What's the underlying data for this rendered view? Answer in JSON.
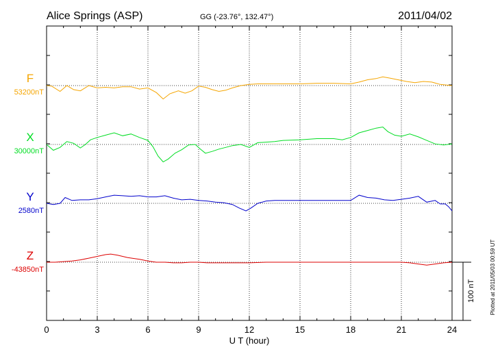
{
  "header": {
    "station": "Alice Springs (ASP)",
    "coords": "GG (-23.76°, 132.47°)",
    "date": "2011/04/02"
  },
  "side_note": "Plotted at 2011/05/03 00:59 UT",
  "scale_bar_label": "100 nT",
  "colors": {
    "F": "#f5a500",
    "X": "#00dd22",
    "Y": "#0000cc",
    "Z": "#dd0000",
    "axis": "#000000"
  },
  "chart_data": {
    "type": "line",
    "title": "Alice Springs (ASP)",
    "xlabel": "U T (hour)",
    "xlim": [
      0,
      24
    ],
    "xticks": [
      0,
      3,
      6,
      9,
      12,
      15,
      18,
      21,
      24
    ],
    "grid": "dotted",
    "scale_bar_nT": 100,
    "series": [
      {
        "name": "F",
        "baseline_label": "53200nT",
        "baseline_nT": 53200,
        "x": [
          0,
          0.3,
          0.8,
          1.2,
          1.6,
          2.0,
          2.5,
          3.0,
          3.5,
          4.0,
          4.5,
          5.0,
          5.5,
          6.0,
          6.5,
          6.9,
          7.3,
          7.8,
          8.2,
          8.6,
          9.0,
          9.4,
          9.8,
          10.2,
          10.6,
          11.0,
          11.5,
          12.0,
          12.5,
          13.0,
          14.0,
          15.0,
          16.0,
          17.0,
          18.0,
          18.5,
          19.0,
          19.5,
          19.9,
          20.3,
          20.8,
          21.3,
          21.8,
          22.3,
          22.8,
          23.3,
          23.7,
          24.0
        ],
        "y": [
          53200,
          53199,
          53190,
          53200,
          53193,
          53191,
          53200,
          53196,
          53197,
          53196,
          53198,
          53198,
          53194,
          53196,
          53188,
          53177,
          53186,
          53191,
          53187,
          53191,
          53199,
          53197,
          53193,
          53190,
          53192,
          53196,
          53200,
          53202,
          53203,
          53203,
          53203,
          53203,
          53204,
          53204,
          53203,
          53206,
          53210,
          53212,
          53215,
          53213,
          53210,
          53207,
          53205,
          53207,
          53206,
          53202,
          53201,
          53200
        ]
      },
      {
        "name": "X",
        "baseline_label": "30000nT",
        "baseline_nT": 30000,
        "x": [
          0,
          0.4,
          0.8,
          1.2,
          1.6,
          2.0,
          2.3,
          2.6,
          3.0,
          3.5,
          4.0,
          4.5,
          5.0,
          5.5,
          6.0,
          6.3,
          6.6,
          6.9,
          7.2,
          7.6,
          8.0,
          8.4,
          8.8,
          9.1,
          9.4,
          9.8,
          10.2,
          10.6,
          11.0,
          11.5,
          12.0,
          12.5,
          13.0,
          13.5,
          14.0,
          15.0,
          16.0,
          17.0,
          17.5,
          18.0,
          18.5,
          19.0,
          19.5,
          19.9,
          20.2,
          20.6,
          21.0,
          21.5,
          22.0,
          22.5,
          23.0,
          23.5,
          24.0
        ],
        "y": [
          30000,
          29990,
          29995,
          30005,
          30002,
          29994,
          30000,
          30008,
          30012,
          30016,
          30020,
          30015,
          30018,
          30012,
          30007,
          29996,
          29980,
          29970,
          29975,
          29985,
          29991,
          29999,
          30000,
          29992,
          29985,
          29988,
          29992,
          29995,
          29998,
          30000,
          29995,
          30003,
          30004,
          30005,
          30007,
          30008,
          30010,
          30010,
          30008,
          30012,
          30020,
          30024,
          30028,
          30030,
          30022,
          30016,
          30014,
          30018,
          30013,
          30007,
          30001,
          29999,
          30001
        ]
      },
      {
        "name": "Y",
        "baseline_label": "2580nT",
        "baseline_nT": 2580,
        "x": [
          0,
          0.4,
          0.8,
          1.1,
          1.5,
          2.0,
          2.5,
          3.0,
          3.5,
          4.0,
          4.5,
          5.0,
          5.5,
          6.0,
          6.5,
          7.0,
          7.5,
          8.0,
          8.5,
          9.0,
          9.5,
          10.0,
          10.5,
          11.0,
          11.4,
          11.8,
          12.1,
          12.5,
          13.0,
          13.5,
          14.0,
          15.0,
          16.0,
          17.0,
          18.0,
          18.5,
          19.0,
          19.5,
          20.0,
          20.5,
          21.0,
          21.5,
          22.0,
          22.5,
          23.0,
          23.3,
          23.6,
          23.8,
          24.0
        ],
        "y": [
          2580,
          2578,
          2580,
          2590,
          2585,
          2586,
          2586,
          2588,
          2591,
          2594,
          2593,
          2592,
          2593,
          2591,
          2591,
          2593,
          2589,
          2586,
          2587,
          2585,
          2584,
          2582,
          2581,
          2578,
          2572,
          2567,
          2572,
          2580,
          2584,
          2585,
          2585,
          2585,
          2585,
          2585,
          2585,
          2594,
          2590,
          2589,
          2586,
          2585,
          2587,
          2589,
          2592,
          2582,
          2585,
          2579,
          2579,
          2574,
          2567
        ]
      },
      {
        "name": "Z",
        "baseline_label": "-43850nT",
        "baseline_nT": -43850,
        "x": [
          0,
          0.5,
          1.0,
          1.5,
          2.0,
          2.5,
          3.0,
          3.5,
          3.8,
          4.2,
          4.8,
          5.5,
          6.0,
          6.5,
          7.0,
          7.5,
          8.0,
          8.5,
          9.0,
          9.5,
          10.0,
          11.0,
          12.0,
          13.0,
          14.0,
          15.0,
          16.0,
          17.0,
          18.0,
          19.0,
          20.0,
          21.0,
          21.5,
          22.0,
          22.5,
          23.0,
          23.5,
          24.0
        ],
        "y": [
          -43850,
          -43850,
          -43849,
          -43848,
          -43846,
          -43843,
          -43840,
          -43837,
          -43836,
          -43838,
          -43842,
          -43845,
          -43848,
          -43850,
          -43850,
          -43851,
          -43851,
          -43850,
          -43850,
          -43851,
          -43851,
          -43851,
          -43851,
          -43850,
          -43850,
          -43850,
          -43850,
          -43850,
          -43850,
          -43850,
          -43850,
          -43850,
          -43851,
          -43853,
          -43855,
          -43853,
          -43851,
          -43850
        ]
      }
    ]
  }
}
